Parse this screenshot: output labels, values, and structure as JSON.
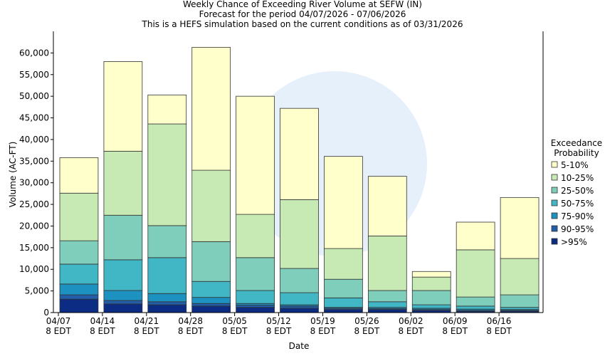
{
  "chart_data": {
    "type": "stacked_bar",
    "title": "Weekly Chance of Exceeding River Volume at SEFW (IN)",
    "subtitle": [
      "Forecast for the period 04/07/2026 - 07/06/2026",
      "This is a HEFS simulation based on the current conditions as of 03/31/2026"
    ],
    "x_label": "Date",
    "y_label": "Volume (AC-FT)",
    "legend_title": [
      "Exceedance",
      "Probability"
    ],
    "categories": [
      [
        "04/07",
        "8 EDT"
      ],
      [
        "04/14",
        "8 EDT"
      ],
      [
        "04/21",
        "8 EDT"
      ],
      [
        "04/28",
        "8 EDT"
      ],
      [
        "05/05",
        "8 EDT"
      ],
      [
        "05/12",
        "8 EDT"
      ],
      [
        "05/19",
        "8 EDT"
      ],
      [
        "05/26",
        "8 EDT"
      ],
      [
        "06/02",
        "8 EDT"
      ],
      [
        "06/09",
        "8 EDT"
      ],
      [
        "06/16",
        "8 EDT"
      ]
    ],
    "series": [
      {
        "name": ">95%",
        "color": "#0c2c84",
        "values": [
          3100,
          2000,
          1800,
          1500,
          1200,
          1000,
          700,
          700,
          500,
          300,
          300
        ]
      },
      {
        "name": "90-95%",
        "color": "#225ea8",
        "values": [
          1000,
          800,
          700,
          600,
          500,
          500,
          300,
          200,
          200,
          200,
          200
        ]
      },
      {
        "name": "75-90%",
        "color": "#1d91c0",
        "values": [
          2500,
          2300,
          1900,
          1400,
          400,
          300,
          200,
          300,
          300,
          300,
          200
        ]
      },
      {
        "name": "50-75%",
        "color": "#41b6c4",
        "values": [
          4600,
          7100,
          8300,
          3700,
          3000,
          2800,
          2200,
          1300,
          800,
          700,
          500
        ]
      },
      {
        "name": "25-50%",
        "color": "#7fcdbb",
        "values": [
          5400,
          10300,
          7400,
          9200,
          7600,
          5600,
          4300,
          2600,
          3300,
          2100,
          2900
        ]
      },
      {
        "name": "10-25%",
        "color": "#c7e9b4",
        "values": [
          11000,
          14800,
          23500,
          16500,
          10000,
          15900,
          7100,
          12600,
          3100,
          10900,
          8400
        ]
      },
      {
        "name": "5-10%",
        "color": "#ffffcc",
        "values": [
          8200,
          20700,
          6700,
          28400,
          27300,
          21100,
          21300,
          13800,
          1300,
          6400,
          14100
        ]
      }
    ],
    "ylim": [
      0,
      65000
    ],
    "yticks": [
      0,
      {
        "value": 5000,
        "label": "5,000"
      },
      {
        "value": 10000,
        "label": "10,000"
      },
      {
        "value": 15000,
        "label": "15,000"
      },
      {
        "value": 20000,
        "label": "20,000"
      },
      {
        "value": 25000,
        "label": "25,000"
      },
      {
        "value": 30000,
        "label": "30,000"
      },
      {
        "value": 35000,
        "label": "35,000"
      },
      {
        "value": 40000,
        "label": "40,000"
      },
      {
        "value": 45000,
        "label": "45,000"
      },
      {
        "value": 50000,
        "label": "50,000"
      },
      {
        "value": 55000,
        "label": "55,000"
      },
      {
        "value": 60000,
        "label": "60,000"
      }
    ],
    "grid": false
  }
}
